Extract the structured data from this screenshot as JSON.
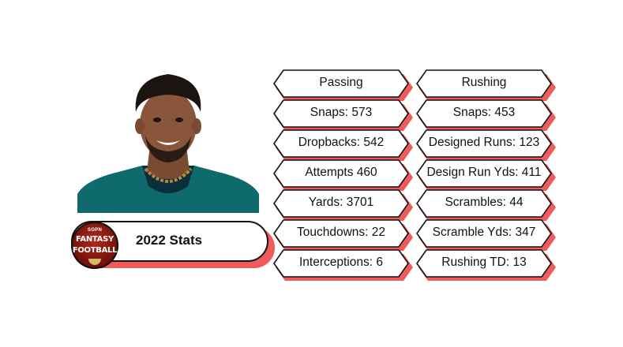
{
  "title": "2022 Stats",
  "badge": {
    "brand": "SGPN",
    "line1": "FANTASY",
    "line2": "FOOTBALL"
  },
  "passing": [
    "Passing",
    "Snaps: 573",
    "Dropbacks: 542",
    "Attempts 460",
    "Yards: 3701",
    "Touchdowns: 22",
    "Interceptions: 6"
  ],
  "rushing": [
    "Rushing",
    "Snaps: 453",
    "Designed Runs: 123",
    "Design Run Yds: 411",
    "Scrambles: 44",
    "Scramble Yds: 347",
    "Rushing TD: 13"
  ],
  "colors": {
    "accent_shadow": "#ef5a5a",
    "outline": "#111111",
    "jersey": "#0f6a6e",
    "badge": "#8e1a0f"
  }
}
